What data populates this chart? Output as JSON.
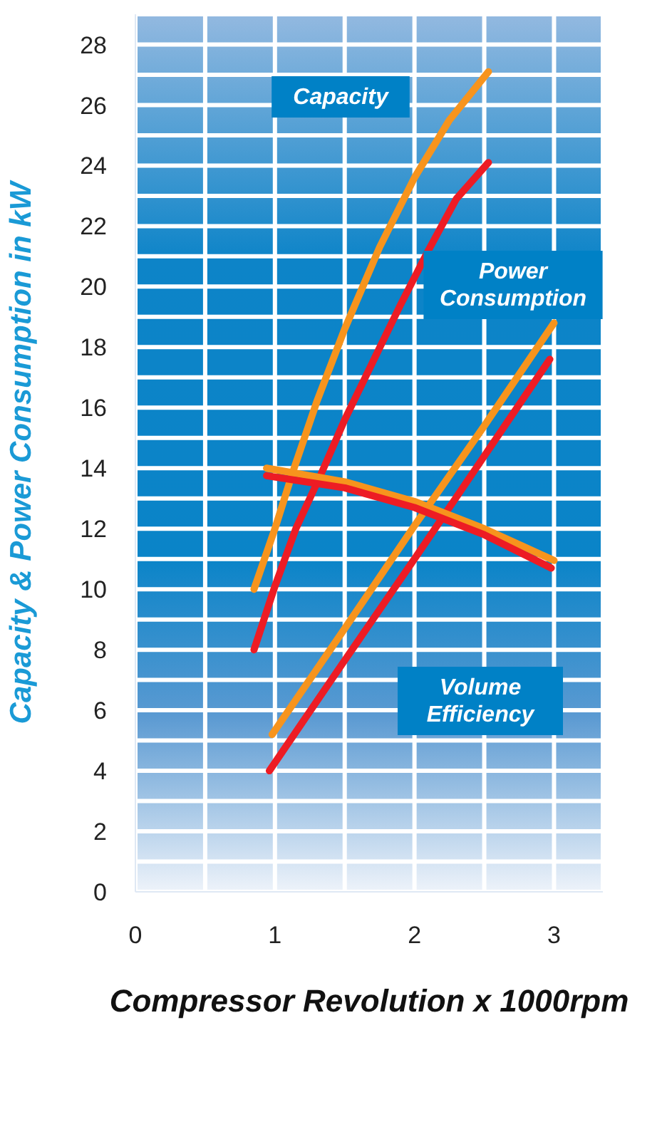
{
  "chart_data": {
    "type": "line",
    "xlabel": "Compressor Revolution x 1000rpm",
    "ylabel": "Capacity & Power Consumption in kW",
    "xlim": [
      0,
      3.35
    ],
    "ylim": [
      0,
      29
    ],
    "xticks": [
      0,
      {
        "value": 0.5,
        "label": null
      },
      1,
      {
        "value": 1.5,
        "label": null
      },
      2,
      {
        "value": 2.5,
        "label": null
      },
      3
    ],
    "yticks": [
      0,
      {
        "value": 1,
        "label": null
      },
      2,
      {
        "value": 3,
        "label": null
      },
      4,
      {
        "value": 5,
        "label": null
      },
      6,
      {
        "value": 7,
        "label": null
      },
      8,
      {
        "value": 9,
        "label": null
      },
      10,
      {
        "value": 11,
        "label": null
      },
      12,
      {
        "value": 13,
        "label": null
      },
      14,
      {
        "value": 15,
        "label": null
      },
      16,
      {
        "value": 17,
        "label": null
      },
      18,
      {
        "value": 19,
        "label": null
      },
      20,
      {
        "value": 21,
        "label": null
      },
      22,
      {
        "value": 23,
        "label": null
      },
      24,
      {
        "value": 25,
        "label": null
      },
      26,
      {
        "value": 27,
        "label": null
      },
      28
    ],
    "grid": true,
    "line_style": "solid",
    "series": [
      {
        "color": "#f7941d",
        "x": [
          0.85,
          1.0,
          1.13,
          1.3,
          1.5,
          1.75,
          2.0,
          2.25,
          2.53
        ],
        "values": [
          10,
          12,
          13.9,
          16.2,
          18.6,
          21.3,
          23.6,
          25.5,
          27.1
        ]
      },
      {
        "color": "#ed1c24",
        "x": [
          0.85,
          1.0,
          1.15,
          1.33,
          1.5,
          1.7,
          1.9,
          2.1,
          2.3,
          2.53
        ],
        "values": [
          8,
          10.1,
          12,
          13.8,
          15.6,
          17.5,
          19.4,
          21.2,
          22.9,
          24.1
        ]
      },
      {
        "color": "#f7941d",
        "x": [
          0.98,
          1.5,
          2.0,
          2.5,
          3.0
        ],
        "values": [
          5.2,
          8.7,
          12.1,
          15.4,
          18.8
        ]
      },
      {
        "color": "#ed1c24",
        "x": [
          0.96,
          1.5,
          2.0,
          2.5,
          2.97
        ],
        "values": [
          4,
          7.65,
          11.0,
          14.4,
          17.6
        ]
      },
      {
        "color": "#f7941d",
        "x": [
          0.94,
          1.5,
          2.0,
          2.5,
          3.0
        ],
        "values": [
          14.0,
          13.55,
          12.9,
          12.0,
          10.95
        ]
      },
      {
        "color": "#ed1c24",
        "x": [
          0.94,
          1.5,
          2.0,
          2.5,
          2.98
        ],
        "values": [
          13.75,
          13.35,
          12.7,
          11.8,
          10.7
        ]
      }
    ],
    "annotations": [
      "Capacity",
      "Power Consumption",
      "Volume Efficiency"
    ]
  }
}
